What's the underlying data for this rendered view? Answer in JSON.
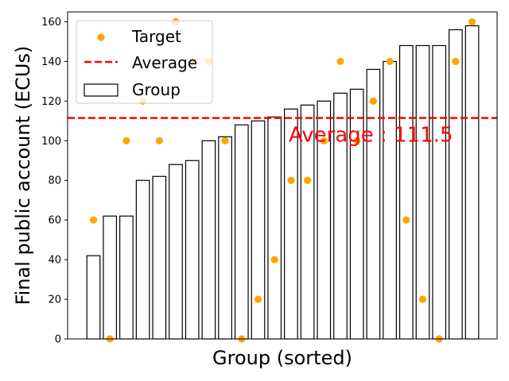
{
  "chart_data": {
    "type": "bar",
    "xlabel": "Group (sorted)",
    "ylabel": "Final public account (ECUs)",
    "ylim": [
      0,
      165
    ],
    "yticks": [
      0,
      20,
      40,
      60,
      80,
      100,
      120,
      140,
      160
    ],
    "grid": false,
    "legend_position": "top-left",
    "series": [
      {
        "name": "Group",
        "kind": "bar",
        "values": [
          42,
          62,
          62,
          80,
          82,
          88,
          90,
          100,
          102,
          108,
          110,
          112,
          116,
          118,
          120,
          124,
          126,
          136,
          140,
          148,
          148,
          148,
          156,
          158
        ]
      },
      {
        "name": "Target",
        "kind": "scatter",
        "color": "#FFA500",
        "values": [
          60,
          0,
          100,
          120,
          100,
          160,
          140,
          140,
          100,
          0,
          20,
          40,
          80,
          80,
          100,
          140,
          100,
          120,
          140,
          60,
          20,
          0,
          140,
          160
        ]
      },
      {
        "name": "Average",
        "kind": "hline",
        "color": "#FF0000",
        "value": 111.5
      }
    ],
    "annotations": [
      {
        "text": "Average : 111.5",
        "color": "#FF0000"
      }
    ]
  }
}
